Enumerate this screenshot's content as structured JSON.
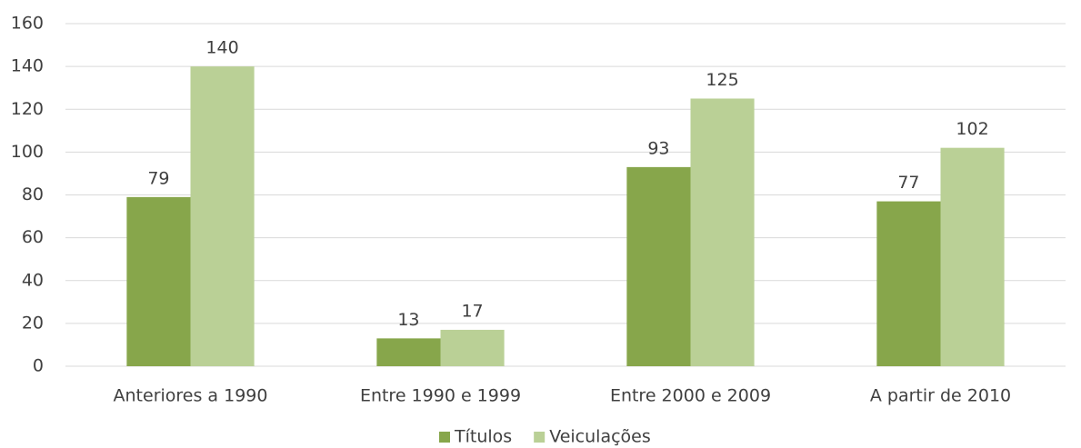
{
  "chart_data": {
    "type": "bar",
    "categories": [
      "Anteriores a 1990",
      "Entre 1990 e 1999",
      "Entre 2000 e 2009",
      "A partir de 2010"
    ],
    "series": [
      {
        "name": "Títulos",
        "color": "#87a64b",
        "values": [
          79,
          13,
          93,
          77
        ]
      },
      {
        "name": "Veiculações",
        "color": "#bad096",
        "values": [
          140,
          17,
          125,
          102
        ]
      }
    ],
    "ylim": [
      0,
      160
    ],
    "yticks": [
      0,
      20,
      40,
      60,
      80,
      100,
      120,
      140,
      160
    ],
    "grid": true,
    "legend": "bottom"
  }
}
